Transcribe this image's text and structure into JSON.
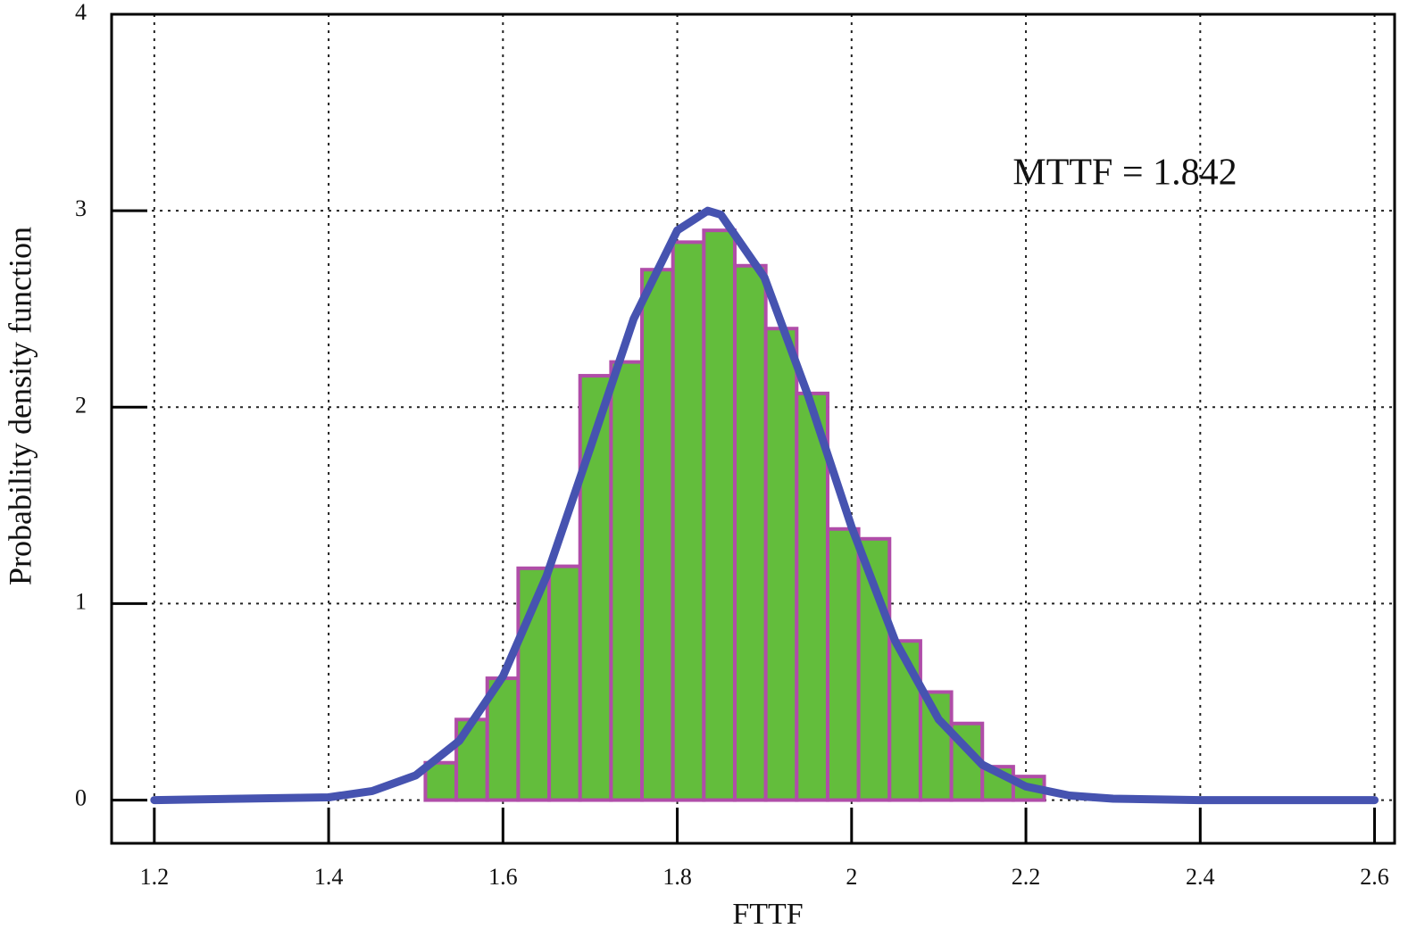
{
  "chart_data": {
    "type": "histogram",
    "xlabel": "FTTF",
    "ylabel": "Probability density function",
    "annotation": "MTTF = 1.842",
    "bins": [
      1.511,
      1.5465,
      1.582,
      1.6175,
      1.653,
      1.6885,
      1.724,
      1.7595,
      1.795,
      1.8305,
      1.866,
      1.9015,
      1.937,
      1.9725,
      2.008,
      2.0435,
      2.079,
      2.1145,
      2.15,
      2.1855,
      2.221
    ],
    "counts": [
      0.19,
      0.41,
      0.62,
      1.18,
      1.19,
      2.16,
      2.23,
      2.7,
      2.84,
      2.9,
      2.72,
      2.4,
      2.07,
      1.38,
      1.33,
      0.81,
      0.55,
      0.39,
      0.17,
      0.12
    ],
    "color": "#63bd3c",
    "edgecolor": "#b04da8",
    "curve": {
      "color": "#4653b0",
      "x": [
        1.2,
        1.4,
        1.45,
        1.5,
        1.55,
        1.6,
        1.65,
        1.7,
        1.75,
        1.8,
        1.835,
        1.85,
        1.9,
        1.95,
        2.0,
        2.05,
        2.1,
        2.15,
        2.2,
        2.25,
        2.3,
        2.4,
        2.6
      ],
      "values": [
        0,
        0.014,
        0.046,
        0.126,
        0.302,
        0.63,
        1.14,
        1.79,
        2.45,
        2.9,
        3.0,
        2.98,
        2.66,
        2.06,
        1.39,
        0.81,
        0.41,
        0.18,
        0.069,
        0.023,
        0.007,
        0,
        0
      ]
    },
    "xlim": [
      1.151,
      2.623
    ],
    "ylim": [
      -0.22,
      4
    ],
    "xticks": [
      1.2,
      1.4,
      1.6,
      1.8,
      2,
      2.2,
      2.4,
      2.6
    ],
    "yticks": [
      0,
      1,
      2,
      3,
      4
    ],
    "grid": true
  }
}
